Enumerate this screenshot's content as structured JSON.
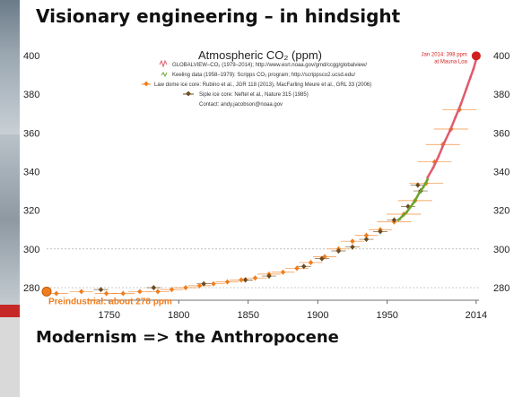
{
  "slide": {
    "title": "Visionary engineering – in hindsight",
    "subtitle": "Modernism => the Anthropocene"
  },
  "chart_data": {
    "type": "scatter",
    "title": "Atmospheric CO₂ (ppm)",
    "xlim": [
      1705,
      2016
    ],
    "ylim": [
      272,
      402
    ],
    "x_ticks": [
      1750,
      1800,
      1850,
      1900,
      1950,
      2014
    ],
    "y_ticks": [
      280,
      300,
      320,
      340,
      360,
      380,
      400
    ],
    "grid": false,
    "legend_position": "top-center",
    "legend": [
      "GLOBALVIEW–CO₂ (1979–2014); http://www.esrl.noaa.gov/gmd/ccgg/globalview/",
      "Keeling data (1958–1979): Scripps CO₂ program; http://scrippsco2.ucsd.edu/",
      "Law dome ice core: Rubino et al., JGR 118 (2013), MacFarling Meure et al., GRL 33 (2006)",
      "Siple ice core:  Neftel et al., Nature 315 (1985)",
      "Contact: andy.jacobson@noaa.gov"
    ],
    "annotations": {
      "preindustrial": "Preindustrial: about 278 ppm",
      "latest_line1": "Jan 2014: 398 ppm",
      "latest_line2": "at Mauna Loa"
    },
    "colors": {
      "law_dome": "#f07d1c",
      "siple": "#6b4a1f",
      "keeling": "#6aa52c",
      "globalview": "#e05a6b",
      "latest": "#d21f1f",
      "reference_line": "#999999"
    },
    "reference_lines": [
      280,
      300
    ],
    "preindustrial_point": {
      "x": 1705,
      "y": 278
    },
    "latest_point": {
      "x": 2014,
      "y": 398
    },
    "series": [
      {
        "name": "Law dome ice core",
        "points": [
          [
            1712,
            277
          ],
          [
            1730,
            278
          ],
          [
            1748,
            277
          ],
          [
            1760,
            277
          ],
          [
            1772,
            278
          ],
          [
            1785,
            278
          ],
          [
            1795,
            279
          ],
          [
            1805,
            280
          ],
          [
            1815,
            281
          ],
          [
            1825,
            282
          ],
          [
            1835,
            283
          ],
          [
            1845,
            284
          ],
          [
            1855,
            285
          ],
          [
            1865,
            287
          ],
          [
            1875,
            288
          ],
          [
            1885,
            290
          ],
          [
            1895,
            293
          ],
          [
            1905,
            296
          ],
          [
            1915,
            300
          ],
          [
            1925,
            304
          ],
          [
            1935,
            307
          ],
          [
            1945,
            310
          ],
          [
            1955,
            314
          ],
          [
            1962,
            318
          ],
          [
            1970,
            325
          ],
          [
            1978,
            334
          ],
          [
            1984,
            345
          ],
          [
            1990,
            354
          ],
          [
            1996,
            362
          ],
          [
            2002,
            372
          ]
        ]
      },
      {
        "name": "Siple ice core",
        "points": [
          [
            1744,
            279
          ],
          [
            1782,
            280
          ],
          [
            1818,
            282
          ],
          [
            1848,
            284
          ],
          [
            1865,
            286
          ],
          [
            1890,
            291
          ],
          [
            1903,
            295
          ],
          [
            1915,
            299
          ],
          [
            1925,
            301
          ],
          [
            1935,
            305
          ],
          [
            1945,
            309
          ],
          [
            1955,
            315
          ],
          [
            1965,
            322
          ],
          [
            1972,
            333
          ],
          [
            1974,
            330
          ]
        ]
      },
      {
        "name": "Keeling data",
        "points": [
          [
            1958,
            315
          ],
          [
            1961,
            317
          ],
          [
            1964,
            319
          ],
          [
            1967,
            322
          ],
          [
            1970,
            325
          ],
          [
            1973,
            329
          ],
          [
            1976,
            332
          ],
          [
            1979,
            336
          ]
        ]
      },
      {
        "name": "GLOBALVIEW–CO₂",
        "points": [
          [
            1979,
            337
          ],
          [
            1983,
            342
          ],
          [
            1987,
            348
          ],
          [
            1991,
            355
          ],
          [
            1995,
            361
          ],
          [
            1999,
            368
          ],
          [
            2003,
            375
          ],
          [
            2007,
            383
          ],
          [
            2010,
            389
          ],
          [
            2012,
            393
          ],
          [
            2014,
            398
          ]
        ]
      }
    ]
  }
}
